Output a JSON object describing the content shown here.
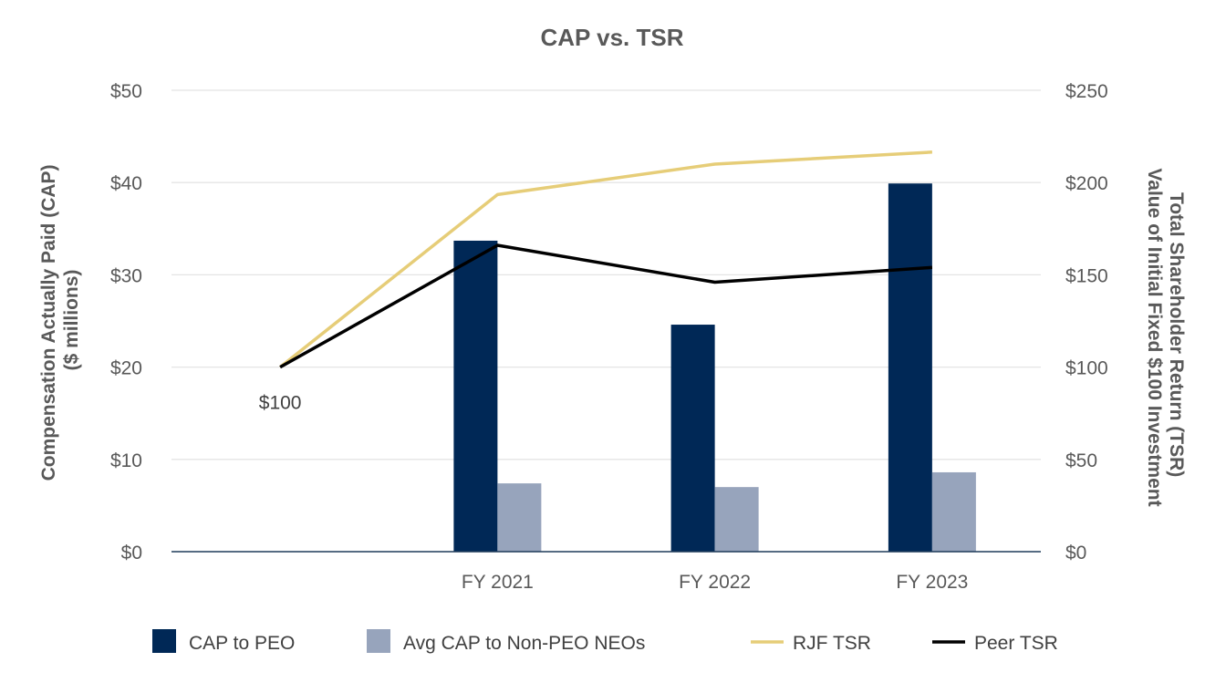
{
  "chart_data": {
    "type": "bar",
    "title": "CAP vs. TSR",
    "categories": [
      "",
      "FY 2021",
      "FY 2022",
      "FY 2023"
    ],
    "ylabel": [
      "Compensation Actually Paid (CAP)",
      "($ millions)"
    ],
    "y2label": [
      "Total Shareholder Return (TSR)",
      "Value of Initial Fixed $100 Investment"
    ],
    "ylim": [
      0,
      50
    ],
    "y2lim": [
      0,
      250
    ],
    "yticks": [
      "$0",
      "$10",
      "$20",
      "$30",
      "$40",
      "$50"
    ],
    "y2ticks": [
      "$0",
      "$50",
      "$100",
      "$150",
      "$200",
      "$250"
    ],
    "bar_series": [
      {
        "name": "CAP to PEO",
        "axis": "left",
        "color": "#002856",
        "values": [
          null,
          33.7,
          24.6,
          39.9
        ]
      },
      {
        "name": "Avg CAP to Non-PEO NEOs",
        "axis": "left",
        "color": "#97a4bc",
        "values": [
          null,
          7.4,
          7.0,
          8.6
        ]
      }
    ],
    "line_series": [
      {
        "name": "RJF TSR",
        "axis": "right",
        "color": "#e6cd78",
        "values": [
          100,
          193.5,
          210,
          216.5
        ]
      },
      {
        "name": "Peer TSR",
        "axis": "right",
        "color": "#000000",
        "values": [
          100,
          166,
          146,
          154
        ]
      }
    ],
    "annotations": [
      {
        "text": "$100",
        "category": 0,
        "axis": "right",
        "value": 100
      }
    ],
    "grid": true,
    "legend_position": "bottom"
  }
}
